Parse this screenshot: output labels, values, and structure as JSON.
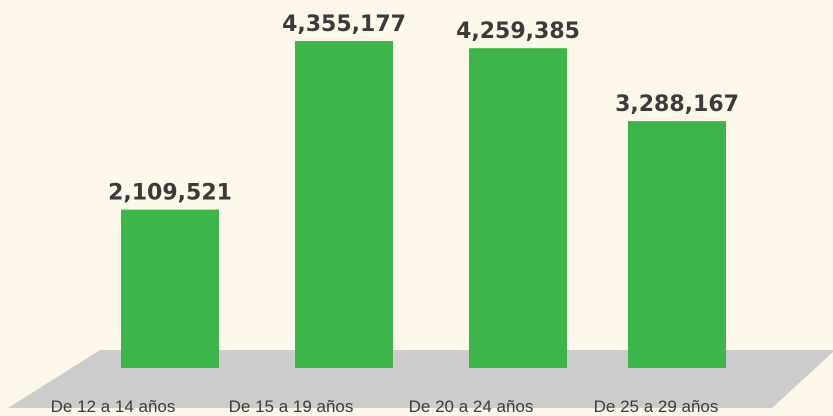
{
  "chart_data": {
    "type": "bar",
    "categories": [
      "De 12 a 14 años",
      "De 15 a 19 años",
      "De 20 a 24 años",
      "De 25 a 29 años"
    ],
    "values": [
      2109521,
      4355177,
      4259385,
      3288167
    ],
    "value_labels": [
      "2,109,521",
      "4,355,177",
      "4,259,385",
      "3,288,167"
    ],
    "color": "#3db54a"
  }
}
